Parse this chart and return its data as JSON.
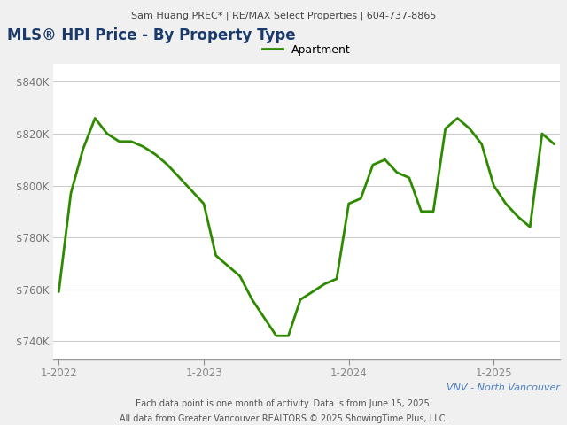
{
  "top_label": "Sam Huang PREC* | RE/MAX Select Properties | 604-737-8865",
  "title": "MLS® HPI Price - By Property Type",
  "title_color": "#1a3a6b",
  "legend_label": "Apartment",
  "line_color": "#2e8b00",
  "xtick_labels": [
    "1-2022",
    "1-2023",
    "1-2024",
    "1-2025"
  ],
  "xtick_positions": [
    0,
    12,
    24,
    36
  ],
  "ytick_values": [
    740000,
    760000,
    780000,
    800000,
    820000,
    840000
  ],
  "ylim": [
    733000,
    847000
  ],
  "xlim": [
    -0.5,
    41.5
  ],
  "footer_right": "Each data point is one month of activity. Data is from June 15, 2025.",
  "footer_left": "All data from Greater Vancouver REALTORS © 2025 ShowingTime Plus, LLC.",
  "region_label": "VNV - North Vancouver",
  "region_color": "#4a7fc1",
  "background_color": "#f0f0f0",
  "plot_bg": "#ffffff",
  "values": [
    759000,
    797000,
    814000,
    826000,
    820000,
    817000,
    817000,
    815000,
    812000,
    808000,
    803000,
    798000,
    793000,
    773000,
    769000,
    765000,
    756000,
    749000,
    742000,
    742000,
    756000,
    759000,
    762000,
    764000,
    793000,
    795000,
    808000,
    810000,
    805000,
    803000,
    790000,
    790000,
    822000,
    826000,
    822000,
    816000,
    800000,
    793000,
    788000,
    784000,
    820000,
    816000
  ]
}
